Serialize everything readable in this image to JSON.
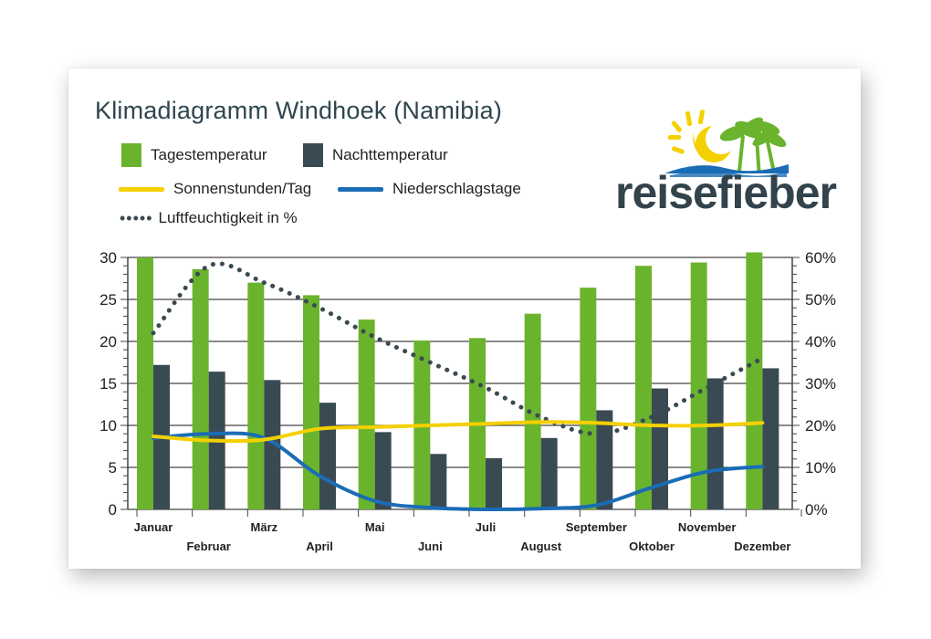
{
  "title": "Klimadiagramm Windhoek (Namibia)",
  "legend": {
    "day_temp": "Tagestemperatur",
    "night_temp": "Nachttemperatur",
    "sunshine": "Sonnenstunden/Tag",
    "rain_days": "Niederschlagstage",
    "humidity": "Luftfeuchtigkeit in %"
  },
  "logo": {
    "text": "reisefieber"
  },
  "colors": {
    "day_temp": "#6ab42d",
    "night_temp": "#3a4a52",
    "sunshine": "#f5d000",
    "rain_days": "#1a6db5",
    "humidity": "#3a4a52",
    "title": "#2f4650"
  },
  "chart_data": {
    "type": "bar",
    "title": "Klimadiagramm Windhoek (Namibia)",
    "categories": [
      "Januar",
      "Februar",
      "März",
      "April",
      "Mai",
      "Juni",
      "Juli",
      "August",
      "September",
      "Oktober",
      "November",
      "Dezember"
    ],
    "ylim": [
      0,
      30
    ],
    "y_ticks": [
      "0",
      "5",
      "10",
      "15",
      "20",
      "25",
      "30"
    ],
    "y2lim": [
      0,
      60
    ],
    "y2_ticks": [
      "0%",
      "10%",
      "20%",
      "30%",
      "40%",
      "50%",
      "60%"
    ],
    "grid": "horizontal",
    "series": [
      {
        "name": "Tagestemperatur",
        "type": "bar",
        "axis": "left",
        "values": [
          30.0,
          28.6,
          27.0,
          25.5,
          22.6,
          20.1,
          20.4,
          23.3,
          26.4,
          29.0,
          29.4,
          30.6
        ]
      },
      {
        "name": "Nachttemperatur",
        "type": "bar",
        "axis": "left",
        "values": [
          17.2,
          16.4,
          15.4,
          12.7,
          9.2,
          6.6,
          6.1,
          8.5,
          11.8,
          14.4,
          15.6,
          16.8
        ]
      },
      {
        "name": "Sonnenstunden/Tag",
        "type": "line",
        "axis": "left",
        "values": [
          8.7,
          8.2,
          8.3,
          9.6,
          9.8,
          10.0,
          10.2,
          10.4,
          10.3,
          10.0,
          10.0,
          10.3
        ]
      },
      {
        "name": "Niederschlagstage",
        "type": "line",
        "axis": "left",
        "values": [
          8.5,
          9.0,
          8.5,
          4.0,
          1.0,
          0.2,
          0.0,
          0.1,
          0.5,
          2.6,
          4.5,
          5.1
        ]
      },
      {
        "name": "Luftfeuchtigkeit in %",
        "type": "dotted-line",
        "axis": "right",
        "values": [
          42,
          58,
          54,
          48,
          41,
          35,
          29,
          22,
          18,
          22,
          29,
          36
        ]
      }
    ]
  }
}
